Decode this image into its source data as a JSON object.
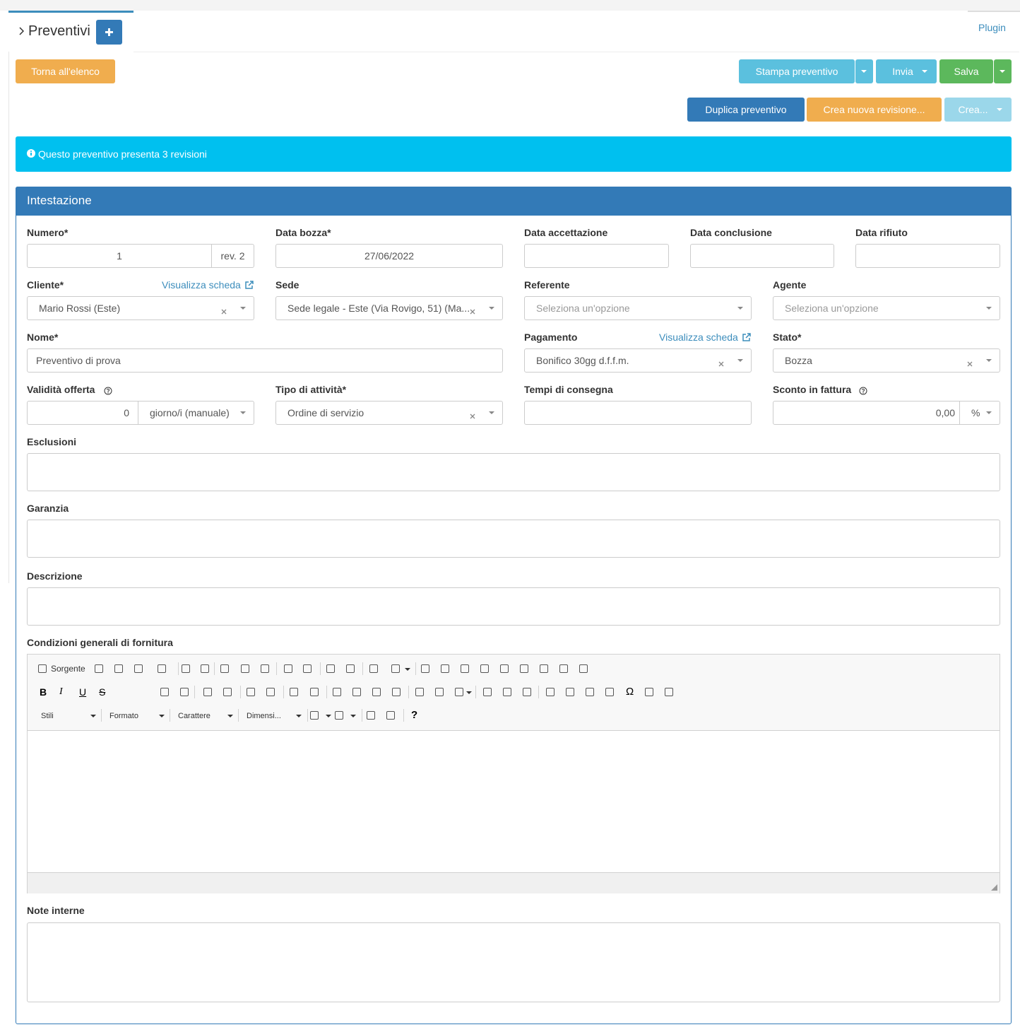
{
  "tab": {
    "title": "Preventivi",
    "plugin": "Plugin"
  },
  "buttons": {
    "back": "Torna all'elenco",
    "print": "Stampa preventivo",
    "send": "Invia",
    "save": "Salva",
    "duplicate": "Duplica preventivo",
    "new_revision": "Crea nuova revisione...",
    "create": "Crea..."
  },
  "alert": "Questo preventivo presenta 3 revisioni",
  "panel": {
    "title": "Intestazione"
  },
  "form": {
    "numero": {
      "label": "Numero*",
      "value": "1",
      "addon": "rev. 2"
    },
    "data_bozza": {
      "label": "Data bozza*",
      "value": "27/06/2022"
    },
    "data_accettazione": {
      "label": "Data accettazione"
    },
    "data_conclusione": {
      "label": "Data conclusione"
    },
    "data_rifiuto": {
      "label": "Data rifiuto"
    },
    "cliente": {
      "label": "Cliente*",
      "link": "Visualizza scheda",
      "value": "Mario Rossi (Este)"
    },
    "sede": {
      "label": "Sede",
      "value": "Sede legale - Este (Via Rovigo, 51) (Ma..."
    },
    "referente": {
      "label": "Referente",
      "placeholder": "Seleziona un'opzione"
    },
    "agente": {
      "label": "Agente",
      "placeholder": "Seleziona un'opzione"
    },
    "nome": {
      "label": "Nome*",
      "value": "Preventivo di prova"
    },
    "pagamento": {
      "label": "Pagamento",
      "link": "Visualizza scheda",
      "value": "Bonifico 30gg d.f.f.m."
    },
    "stato": {
      "label": "Stato*",
      "value": "Bozza"
    },
    "validita": {
      "label": "Validità offerta",
      "value": "0",
      "unit": "giorno/i (manuale)"
    },
    "tipo": {
      "label": "Tipo di attività*",
      "value": "Ordine di servizio"
    },
    "tempi": {
      "label": "Tempi di consegna"
    },
    "sconto": {
      "label": "Sconto in fattura",
      "value": "0,00",
      "unit": "%"
    },
    "esclusioni": {
      "label": "Esclusioni"
    },
    "garanzia": {
      "label": "Garanzia"
    },
    "descrizione": {
      "label": "Descrizione"
    },
    "condizioni": {
      "label": "Condizioni generali di fornitura"
    },
    "note": {
      "label": "Note interne"
    }
  },
  "editor": {
    "source": "Sorgente",
    "bold": "B",
    "italic": "I",
    "underline": "U",
    "strike": "S",
    "styles": "Stili",
    "format": "Formato",
    "font": "Carattere",
    "size": "Dimensi...",
    "special_char": "Ω",
    "help": "?"
  }
}
